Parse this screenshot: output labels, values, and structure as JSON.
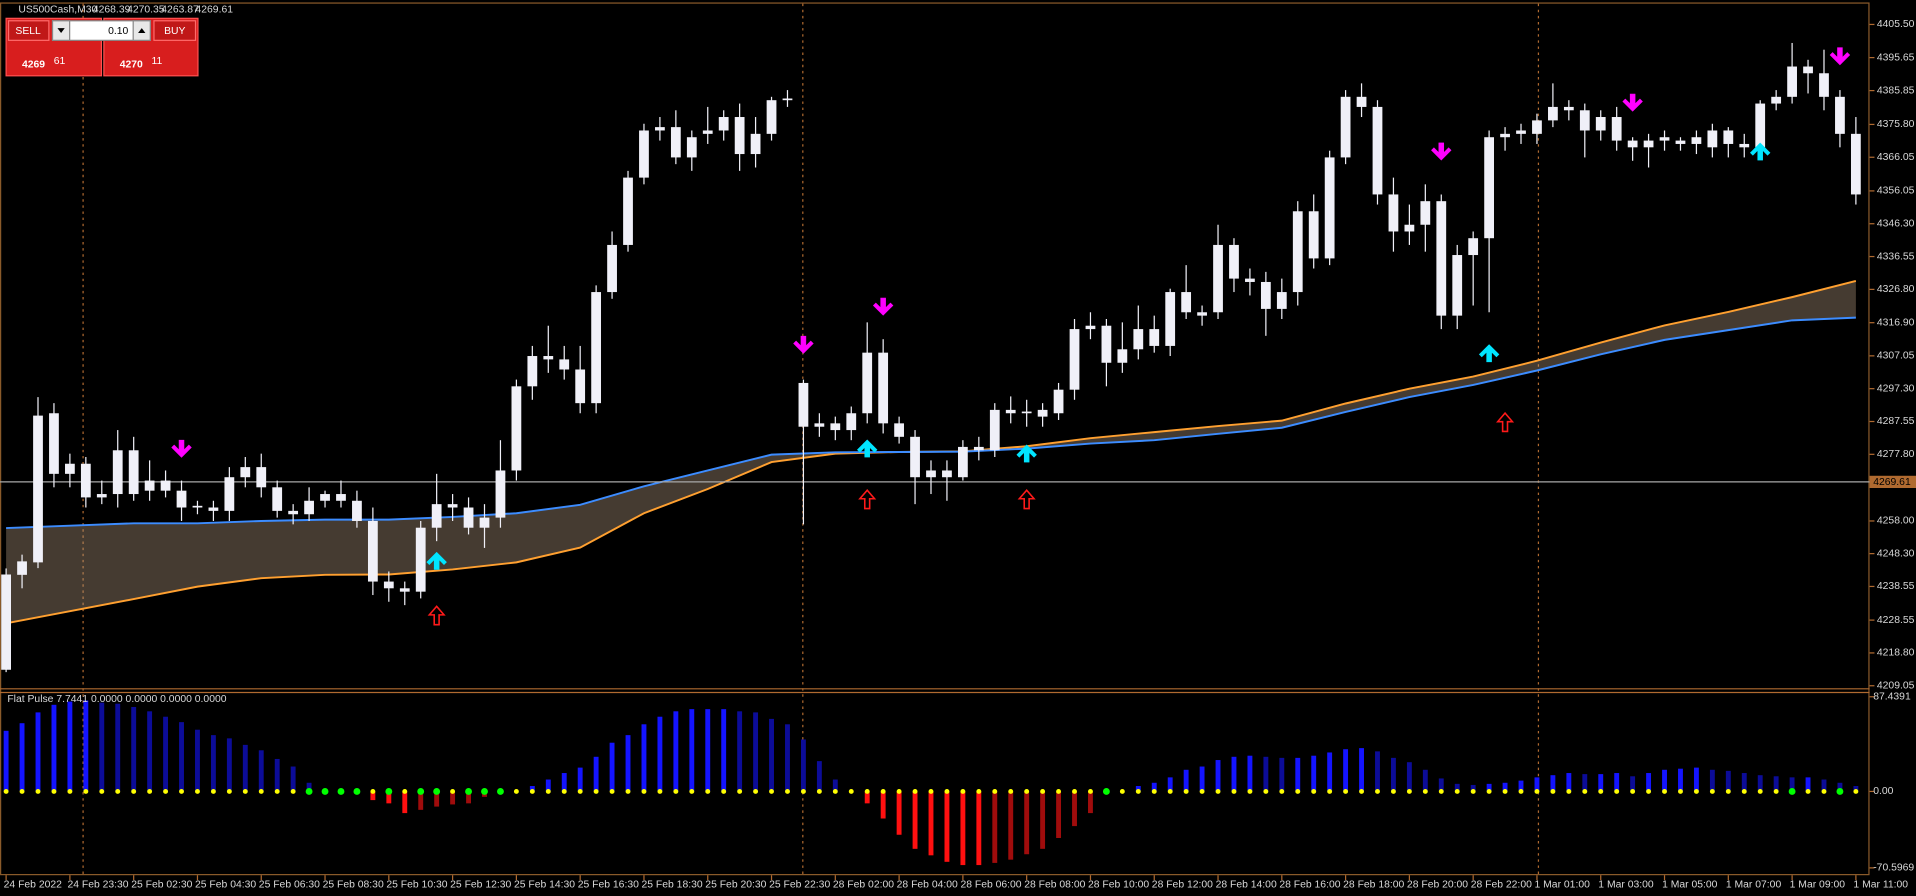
{
  "trade_panel": {
    "sell": "SELL",
    "buy": "BUY",
    "lot": "0.10",
    "bid_main": "4269",
    "bid_pips": "61",
    "ask_main": "4270",
    "ask_pips": "11"
  },
  "chart_data": [
    {
      "type": "candlestick",
      "title": "US500Cash,M30",
      "ohlc": [
        4268.39,
        4270.35,
        4263.87,
        4269.61
      ],
      "categories": [
        "24 Feb 2022",
        null,
        null,
        null,
        "24 Feb 23:30",
        null,
        null,
        null,
        "25 Feb 02:30",
        null,
        null,
        null,
        "25 Feb 04:30",
        null,
        null,
        null,
        "25 Feb 06:30",
        null,
        null,
        null,
        "25 Feb 08:30",
        null,
        null,
        null,
        "25 Feb 10:30",
        null,
        null,
        null,
        "25 Feb 12:30",
        null,
        null,
        null,
        "25 Feb 14:30",
        null,
        null,
        null,
        "25 Feb 16:30",
        null,
        null,
        null,
        "25 Feb 18:30",
        null,
        null,
        null,
        "25 Feb 20:30",
        null,
        null,
        null,
        "25 Feb 22:30",
        null,
        null,
        null,
        "28 Feb 02:00",
        null,
        null,
        null,
        "28 Feb 04:00",
        null,
        null,
        null,
        "28 Feb 06:00",
        null,
        null,
        null,
        "28 Feb 08:00",
        null,
        null,
        null,
        "28 Feb 10:00",
        null,
        null,
        null,
        "28 Feb 12:00",
        null,
        null,
        null,
        "28 Feb 14:00",
        null,
        null,
        null,
        "28 Feb 16:00",
        null,
        null,
        null,
        "28 Feb 18:00",
        null,
        null,
        null,
        "28 Feb 20:00",
        null,
        null,
        null,
        "28 Feb 22:00",
        null,
        null,
        null,
        "1 Mar 01:00",
        null,
        null,
        null,
        "1 Mar 03:00",
        null,
        null,
        null,
        "1 Mar 05:00",
        null,
        null,
        null,
        "1 Mar 07:00",
        null,
        null,
        null,
        "1 Mar 09:00",
        null,
        null,
        null,
        "1 Mar 11:00"
      ],
      "open": [
        4213.8,
        4242,
        4245.7,
        4290,
        4272,
        4275,
        4265,
        4266,
        4279,
        4267,
        4270,
        4267,
        4262,
        4262,
        4261,
        4271,
        4274,
        4268,
        4261,
        4260,
        4264,
        4266,
        4264,
        4258,
        4240,
        4238,
        4237,
        4256,
        4263,
        4262,
        4256,
        4259,
        4273,
        4298,
        4307,
        4306,
        4303,
        4293,
        4326,
        4340,
        4360,
        4374,
        4375,
        4366,
        4373,
        4374,
        4378,
        4367,
        4373,
        4383,
        4299,
        4286,
        4287,
        4285,
        4290,
        4308,
        4287,
        4283,
        4271,
        4273,
        4271,
        4280,
        4279,
        4291,
        4290,
        4289,
        4290,
        4297,
        4315,
        4316,
        4305,
        4309,
        4315,
        4310,
        4326,
        4320,
        4320,
        4340,
        4330,
        4329,
        4321,
        4326,
        4350,
        4336,
        4366,
        4384,
        4381,
        4355,
        4344,
        4346,
        4353,
        4319,
        4337,
        4342,
        4372,
        4373,
        4373,
        4377,
        4381,
        4380,
        4374,
        4378,
        4371,
        4369,
        4371,
        4371,
        4370,
        4369,
        4374,
        4370,
        4369,
        4382,
        4384,
        4393,
        4391,
        4384,
        4373
      ],
      "high": [
        4243.9,
        4248,
        4294.8,
        4293,
        4278,
        4277,
        4270,
        4285,
        4283,
        4276,
        4273,
        4270,
        4264,
        4264,
        4274,
        4277,
        4278,
        4270,
        4263,
        4268,
        4267,
        4270,
        4267,
        4262,
        4243,
        4240,
        4258,
        4272,
        4266,
        4265,
        4263,
        4282,
        4300,
        4310,
        4316,
        4310,
        4310,
        4328,
        4344,
        4362,
        4376,
        4378,
        4380,
        4374,
        4381,
        4380,
        4382,
        4378,
        4384,
        4386,
        4300,
        4290,
        4289,
        4292,
        4317,
        4312,
        4289,
        4285,
        4276,
        4276,
        4282,
        4283,
        4293,
        4295,
        4294,
        4293,
        4299,
        4318,
        4320,
        4318,
        4317,
        4322,
        4319,
        4327,
        4334,
        4322,
        4346,
        4342,
        4333,
        4332,
        4330,
        4353,
        4355,
        4368,
        4386,
        4388,
        4383,
        4360,
        4352,
        4358,
        4355,
        4340,
        4344,
        4374,
        4375,
        4376,
        4379,
        4388,
        4383,
        4382,
        4380,
        4381,
        4372,
        4373,
        4374,
        4372,
        4374,
        4376,
        4375,
        4373,
        4383,
        4386,
        4400,
        4395,
        4398,
        4386,
        4378
      ],
      "low": [
        4213.1,
        4238,
        4244,
        4268,
        4268,
        4262,
        4263,
        4262,
        4264,
        4264,
        4265,
        4258,
        4260,
        4258,
        4258,
        4268,
        4265,
        4259,
        4257,
        4258,
        4262,
        4262,
        4256,
        4236,
        4234,
        4233,
        4235,
        4252,
        4258,
        4254,
        4250,
        4256,
        4270,
        4294,
        4302,
        4300,
        4290,
        4290,
        4324,
        4338,
        4358,
        4371,
        4364,
        4362,
        4370,
        4371,
        4362,
        4363,
        4371,
        4381,
        4257,
        4283,
        4282,
        4282,
        4287,
        4284,
        4281,
        4263,
        4266,
        4264,
        4270,
        4276,
        4277,
        4287,
        4286,
        4286,
        4288,
        4294,
        4312,
        4298,
        4302,
        4306,
        4308,
        4307,
        4318,
        4316,
        4318,
        4326,
        4325,
        4313,
        4318,
        4322,
        4333,
        4334,
        4364,
        4378,
        4352,
        4338,
        4340,
        4338,
        4315,
        4315,
        4322,
        4320,
        4368,
        4370,
        4370,
        4375,
        4377,
        4366,
        4371,
        4368,
        4365,
        4363,
        4368,
        4368,
        4367,
        4366,
        4366,
        4366,
        4366,
        4380,
        4382,
        4385,
        4380,
        4369,
        4352
      ],
      "close": [
        4242.1,
        4246,
        4289.3,
        4272,
        4275,
        4265,
        4266,
        4279,
        4266,
        4270,
        4267,
        4262,
        4262.5,
        4261,
        4271,
        4274,
        4268,
        4261,
        4260,
        4264,
        4266,
        4264,
        4258,
        4240,
        4238,
        4237,
        4256,
        4263,
        4262,
        4256,
        4259,
        4273,
        4298,
        4307,
        4306,
        4303,
        4293,
        4326,
        4340,
        4360,
        4374,
        4375,
        4366,
        4372,
        4374,
        4378,
        4367,
        4373,
        4383,
        4383.5,
        4286,
        4287,
        4285,
        4290,
        4308,
        4287,
        4283,
        4271,
        4273,
        4271,
        4280,
        4279,
        4291,
        4290,
        4290.5,
        4291,
        4297,
        4315,
        4316,
        4305,
        4309,
        4315,
        4310,
        4326,
        4320,
        4319,
        4340,
        4330,
        4329,
        4321,
        4326,
        4350,
        4336,
        4366,
        4384,
        4381,
        4355,
        4344,
        4346,
        4353,
        4319,
        4337,
        4342,
        4372,
        4373,
        4374,
        4377,
        4381,
        4380,
        4374,
        4378,
        4371,
        4369,
        4371,
        4372,
        4370,
        4372,
        4374,
        4370,
        4369,
        4382,
        4384,
        4393,
        4391,
        4384,
        4373,
        4355
      ],
      "color": "#f0f0f8",
      "ribbon": {
        "x": [
          0,
          4,
          8,
          12,
          16,
          20,
          24,
          28,
          32,
          36,
          40,
          44,
          48,
          52,
          56,
          60,
          64,
          68,
          72,
          76,
          80,
          84,
          88,
          92,
          96,
          100,
          104,
          108,
          112,
          116
        ],
        "series": [
          {
            "color": "#ffa030",
            "values": [
              4227.6,
              4231.2,
              4234.8,
              4238.5,
              4241.0,
              4242.0,
              4242.1,
              4243.6,
              4245.7,
              4250.1,
              4260.3,
              4267.5,
              4275.5,
              4278.0,
              4278.5,
              4278.7,
              4280.2,
              4282.6,
              4284.4,
              4286.2,
              4287.8,
              4292.9,
              4297.3,
              4300.9,
              4305.6,
              4311.0,
              4316.1,
              4320.1,
              4324.5,
              4329.3
            ]
          },
          {
            "color": "#3c8cff",
            "values": [
              4255.9,
              4256.6,
              4257.3,
              4257.3,
              4258.0,
              4258.4,
              4258.4,
              4259.2,
              4260.3,
              4262.8,
              4268.3,
              4273.0,
              4277.7,
              4278.4,
              4278.5,
              4278.6,
              4279.5,
              4281.0,
              4282.0,
              4283.9,
              4285.7,
              4290.4,
              4294.8,
              4298.4,
              4302.7,
              4307.5,
              4311.8,
              4314.7,
              4317.6,
              4318.4
            ]
          }
        ]
      },
      "signals": [
        {
          "symbol": "down",
          "color": "#ff00ff",
          "x": [
            11,
            50,
            55,
            90,
            102,
            115
          ],
          "values": [
            4279.1,
            4310.0,
            4321.3,
            4367.4,
            4381.9,
            4395.7
          ]
        },
        {
          "symbol": "up",
          "color": "#00e5ff",
          "x": [
            27,
            54,
            64,
            93,
            110
          ],
          "values": [
            4246.5,
            4279.9,
            4278.4,
            4308.2,
            4368.1
          ]
        },
        {
          "symbol": "up-hollow",
          "color": "#ff1a1a",
          "x": [
            27,
            54,
            64,
            94
          ],
          "values": [
            4230.1,
            4264.6,
            4264.6,
            4287.5
          ]
        }
      ],
      "last_price": 4269.61,
      "ylim": [
        4209.05,
        4405.5
      ],
      "yticks": [
        {
          "value": 4405.5,
          "label": "4405.50"
        },
        4395.65,
        4385.85,
        {
          "value": 4375.8,
          "label": "4375.80"
        },
        4366.05,
        4356.05,
        {
          "value": 4346.3,
          "label": "4346.30"
        },
        4336.55,
        {
          "value": 4326.8,
          "label": "4326.80"
        },
        {
          "value": 4316.9,
          "label": "4316.90"
        },
        4307.05,
        {
          "value": 4297.3,
          "label": "4297.30"
        },
        4287.55,
        {
          "value": 4277.8,
          "label": "4277.80"
        },
        {
          "value": 4258,
          "label": "4258.00"
        },
        {
          "value": 4248.3,
          "label": "4248.30"
        },
        4238.55,
        4228.55,
        {
          "value": 4218.8,
          "label": "4218.80"
        },
        4209.05
      ]
    },
    {
      "type": "bar",
      "title": "Flat Pulse 7.7441 0.0000 0.0000 0.0000 0.0000",
      "values": [
        56,
        63,
        73,
        80,
        83,
        84,
        82,
        81,
        78,
        74,
        69,
        64,
        57,
        52,
        49,
        43,
        38,
        30,
        23,
        8,
        0,
        0,
        0,
        -8,
        -11,
        -20,
        -17,
        -14,
        -12,
        -11,
        -5,
        0,
        0,
        5,
        11,
        17,
        22,
        32,
        45,
        52,
        62,
        69,
        74,
        76,
        76,
        76,
        74,
        73,
        67,
        62,
        48,
        28,
        11,
        0,
        -11,
        -25,
        -40,
        -53,
        -59,
        -65,
        -68,
        -68,
        -66,
        -63,
        -58,
        -53,
        -43,
        -32,
        -20,
        0,
        0,
        5,
        8,
        13,
        20,
        23,
        29,
        32,
        33,
        32,
        31,
        31,
        33,
        36,
        39,
        40,
        37,
        31,
        27,
        20,
        12,
        7,
        6,
        7,
        8,
        10,
        13,
        15,
        17,
        16,
        16,
        17,
        14,
        17,
        20,
        21,
        22,
        20,
        19,
        17,
        15,
        14,
        13,
        13,
        11,
        8,
        5
      ],
      "colors": {
        "up_rising": "#1414ff",
        "up_falling": "#0c0c99",
        "down_rising": "#ff1010",
        "down_falling": "#a00c0c"
      },
      "dots": {
        "color": "#ffff00",
        "highlight_color": "#00ff00",
        "highlight": [
          19,
          20,
          21,
          22,
          24,
          26,
          27,
          29,
          30,
          31,
          69,
          112,
          115
        ]
      },
      "ylim": [
        -70.5969,
        87.4391
      ],
      "yticks": [
        87.4391,
        {
          "value": 0,
          "label": "0.00"
        },
        -70.5969
      ]
    }
  ]
}
